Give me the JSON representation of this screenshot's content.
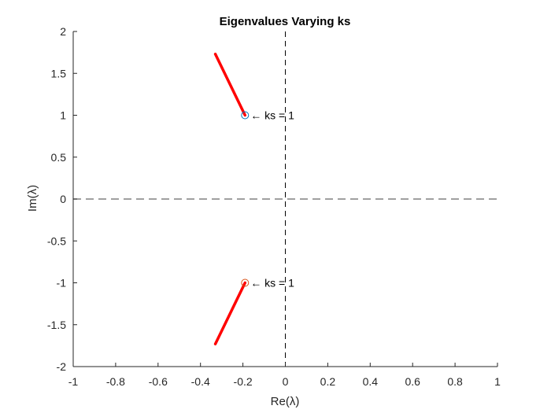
{
  "chart_data": {
    "type": "line",
    "title": "Eigenvalues Varying ks",
    "xlabel": "Re(λ)",
    "ylabel": "Im(λ)",
    "xlim": [
      -1,
      1
    ],
    "ylim": [
      -2,
      2
    ],
    "xticks": [
      -1,
      -0.8,
      -0.6,
      -0.4,
      -0.2,
      0,
      0.2,
      0.4,
      0.6,
      0.8,
      1
    ],
    "xtick_labels": [
      "-1",
      "-0.8",
      "-0.6",
      "-0.4",
      "-0.2",
      "0",
      "0.2",
      "0.4",
      "0.6",
      "0.8",
      "1"
    ],
    "yticks": [
      -2,
      -1.5,
      -1,
      -0.5,
      0,
      0.5,
      1,
      1.5,
      2
    ],
    "ytick_labels": [
      "-2",
      "-1.5",
      "-1",
      "-0.5",
      "0",
      "0.5",
      "1",
      "1.5",
      "2"
    ],
    "grid": false,
    "reference_lines": [
      {
        "orientation": "horizontal",
        "value": 0,
        "style": "dashed",
        "color": "#808080"
      },
      {
        "orientation": "vertical",
        "value": 0,
        "style": "dashed",
        "color": "#000000"
      }
    ],
    "series": [
      {
        "color": "#ff0000",
        "x": [
          -0.19,
          -0.33
        ],
        "y": [
          1.0,
          1.73
        ]
      },
      {
        "color": "#ff0000",
        "x": [
          -0.19,
          -0.33
        ],
        "y": [
          -1.0,
          -1.73
        ]
      }
    ],
    "markers": [
      {
        "x": -0.19,
        "y": 1.0,
        "shape": "circle",
        "color": "#0072bd"
      },
      {
        "x": -0.19,
        "y": -1.0,
        "shape": "circle",
        "color": "#d95319"
      }
    ],
    "annotations": [
      {
        "x": -0.19,
        "y": 1.0,
        "text": "← ks = 1"
      },
      {
        "x": -0.19,
        "y": -1.0,
        "text": "← ks = 1"
      }
    ]
  }
}
